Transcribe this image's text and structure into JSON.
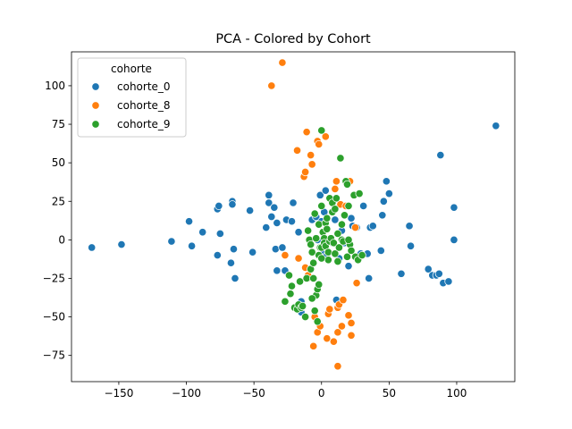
{
  "chart_data": {
    "type": "scatter",
    "title": "PCA - Colored by Cohort",
    "xlabel": "",
    "ylabel": "",
    "xlim": [
      -185,
      143
    ],
    "ylim": [
      -92,
      122
    ],
    "xticks": [
      -150,
      -100,
      -50,
      0,
      50,
      100
    ],
    "yticks": [
      -75,
      -50,
      -25,
      0,
      25,
      50,
      75,
      100
    ],
    "x_tick_labels": [
      "−150",
      "−100",
      "−50",
      "0",
      "50",
      "100"
    ],
    "y_tick_labels": [
      "−75",
      "−50",
      "−25",
      "0",
      "25",
      "50",
      "75",
      "100"
    ],
    "grid": false,
    "legend": {
      "title": "cohorte",
      "placement": "top-left",
      "entries": [
        "cohorte_0",
        "cohorte_8",
        "cohorte_9"
      ]
    },
    "series": [
      {
        "name": "cohorte_0",
        "color": "#1f77b4",
        "points": [
          [
            -170,
            -5
          ],
          [
            -148,
            -3
          ],
          [
            -111,
            -1
          ],
          [
            -98,
            12
          ],
          [
            -96,
            -4
          ],
          [
            -88,
            5
          ],
          [
            -77,
            20
          ],
          [
            -76,
            22
          ],
          [
            -77,
            -10
          ],
          [
            -75,
            4
          ],
          [
            -67,
            -15
          ],
          [
            -66,
            25
          ],
          [
            -66,
            23
          ],
          [
            -65,
            -6
          ],
          [
            -64,
            -25
          ],
          [
            -53,
            19
          ],
          [
            -51,
            -8
          ],
          [
            -41,
            8
          ],
          [
            -39,
            29
          ],
          [
            -39,
            24
          ],
          [
            -37,
            15
          ],
          [
            -35,
            21
          ],
          [
            -34,
            -6
          ],
          [
            -33,
            11
          ],
          [
            -33,
            -20
          ],
          [
            -29,
            -5
          ],
          [
            -27,
            -20
          ],
          [
            -26,
            13
          ],
          [
            -22,
            12
          ],
          [
            -21,
            24
          ],
          [
            -17,
            5
          ],
          [
            -15,
            -47
          ],
          [
            -15,
            -40
          ],
          [
            -7,
            13
          ],
          [
            -4,
            15
          ],
          [
            -3,
            0
          ],
          [
            -1,
            29
          ],
          [
            0,
            12
          ],
          [
            1,
            -7
          ],
          [
            2,
            18
          ],
          [
            3,
            32
          ],
          [
            4,
            -10
          ],
          [
            6,
            0
          ],
          [
            8,
            -2
          ],
          [
            10,
            13
          ],
          [
            11,
            -39
          ],
          [
            13,
            -12
          ],
          [
            15,
            6
          ],
          [
            17,
            -2
          ],
          [
            20,
            -17
          ],
          [
            22,
            14
          ],
          [
            23,
            9
          ],
          [
            26,
            8
          ],
          [
            29,
            -9
          ],
          [
            31,
            22
          ],
          [
            34,
            -9
          ],
          [
            35,
            -25
          ],
          [
            36,
            8
          ],
          [
            38,
            9
          ],
          [
            44,
            -7
          ],
          [
            45,
            16
          ],
          [
            46,
            25
          ],
          [
            48,
            38
          ],
          [
            50,
            30
          ],
          [
            59,
            -22
          ],
          [
            65,
            9
          ],
          [
            66,
            -4
          ],
          [
            79,
            -19
          ],
          [
            82,
            -23
          ],
          [
            85,
            -23
          ],
          [
            87,
            -22
          ],
          [
            88,
            55
          ],
          [
            90,
            -28
          ],
          [
            94,
            -27
          ],
          [
            98,
            0
          ],
          [
            98,
            21
          ],
          [
            129,
            74
          ]
        ]
      },
      {
        "name": "cohorte_8",
        "color": "#ff7f0e",
        "points": [
          [
            -37,
            100
          ],
          [
            -29,
            115
          ],
          [
            -27,
            -10
          ],
          [
            -18,
            58
          ],
          [
            -17,
            -12
          ],
          [
            -13,
            41
          ],
          [
            -12,
            -18
          ],
          [
            -12,
            44
          ],
          [
            -11,
            70
          ],
          [
            -10,
            -25
          ],
          [
            -10,
            -23
          ],
          [
            -8,
            55
          ],
          [
            -7,
            49
          ],
          [
            -6,
            -69
          ],
          [
            -5,
            -50
          ],
          [
            -3,
            64
          ],
          [
            -3,
            -60
          ],
          [
            -2,
            62
          ],
          [
            -1,
            -56
          ],
          [
            3,
            67
          ],
          [
            4,
            -64
          ],
          [
            5,
            -48
          ],
          [
            6,
            -45
          ],
          [
            9,
            -66
          ],
          [
            10,
            33
          ],
          [
            11,
            38
          ],
          [
            12,
            -44
          ],
          [
            12,
            -60
          ],
          [
            13,
            -42
          ],
          [
            14,
            23
          ],
          [
            15,
            -56
          ],
          [
            16,
            -39
          ],
          [
            18,
            22
          ],
          [
            20,
            -49
          ],
          [
            22,
            -54
          ],
          [
            21,
            38
          ],
          [
            22,
            -62
          ],
          [
            12,
            -82
          ],
          [
            25,
            8
          ],
          [
            26,
            -28
          ]
        ]
      },
      {
        "name": "cohorte_9",
        "color": "#2ca02c",
        "points": [
          [
            -27,
            -40
          ],
          [
            -24,
            -23
          ],
          [
            -23,
            -35
          ],
          [
            -22,
            -30
          ],
          [
            -20,
            -44
          ],
          [
            -18,
            -45
          ],
          [
            -17,
            -42
          ],
          [
            -16,
            -27
          ],
          [
            -15,
            -44
          ],
          [
            -14,
            -43
          ],
          [
            -12,
            -50
          ],
          [
            -11,
            -25
          ],
          [
            -10,
            6
          ],
          [
            -9,
            0
          ],
          [
            -8,
            -3
          ],
          [
            -8,
            -19
          ],
          [
            -7,
            -8
          ],
          [
            -6,
            -25
          ],
          [
            -6,
            -15
          ],
          [
            -5,
            17
          ],
          [
            -5,
            -46
          ],
          [
            -4,
            1
          ],
          [
            -4,
            -36
          ],
          [
            -3,
            -53
          ],
          [
            -3,
            -32
          ],
          [
            -2,
            10
          ],
          [
            -2,
            -10
          ],
          [
            -2,
            -29
          ],
          [
            -1,
            -5
          ],
          [
            0,
            71
          ],
          [
            0,
            22
          ],
          [
            0,
            -5
          ],
          [
            1,
            5
          ],
          [
            2,
            1
          ],
          [
            2,
            -2
          ],
          [
            3,
            11
          ],
          [
            3,
            -4
          ],
          [
            4,
            7
          ],
          [
            4,
            14
          ],
          [
            5,
            -8
          ],
          [
            5,
            -13
          ],
          [
            6,
            -1
          ],
          [
            6,
            27
          ],
          [
            7,
            1
          ],
          [
            8,
            18
          ],
          [
            8,
            24
          ],
          [
            9,
            -2
          ],
          [
            10,
            -9
          ],
          [
            10,
            20
          ],
          [
            11,
            27
          ],
          [
            12,
            4
          ],
          [
            12,
            -14
          ],
          [
            13,
            -5
          ],
          [
            14,
            53
          ],
          [
            15,
            0
          ],
          [
            15,
            10
          ],
          [
            16,
            -1
          ],
          [
            17,
            16
          ],
          [
            18,
            38
          ],
          [
            19,
            36
          ],
          [
            19,
            -11
          ],
          [
            20,
            22
          ],
          [
            21,
            -3
          ],
          [
            22,
            -7
          ],
          [
            24,
            29
          ],
          [
            25,
            -11
          ],
          [
            27,
            -13
          ],
          [
            28,
            30
          ],
          [
            30,
            -10
          ],
          [
            20,
            0
          ],
          [
            0,
            -12
          ],
          [
            -7,
            -38
          ]
        ]
      }
    ]
  }
}
